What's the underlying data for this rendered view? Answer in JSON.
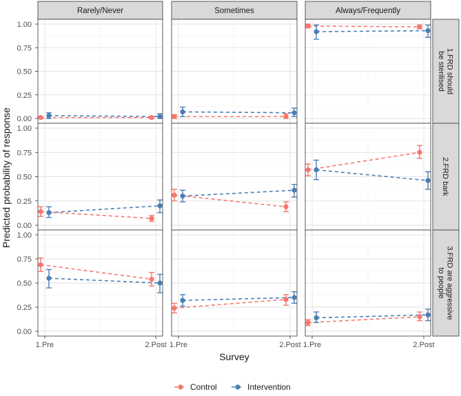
{
  "chart_data": {
    "type": "line",
    "ylabel": "Predicted probability of response",
    "xlabel": "Survey",
    "x_categories": [
      "1.Pre",
      "2.Post"
    ],
    "ylim": [
      0,
      1
    ],
    "y_ticks": [
      "0.00",
      "0.25",
      "0.50",
      "0.75",
      "1.00"
    ],
    "column_facets": [
      "Rarely/Never",
      "Sometimes",
      "Always/Frequently"
    ],
    "row_facets": [
      "1.FRD should be sterilised",
      "2.FRD bark",
      "3.FRD are aggressive to people"
    ],
    "row_facet_lines": [
      [
        "1.FRD should",
        "be sterilised"
      ],
      [
        "2.FRD bark"
      ],
      [
        "3.FRD are aggressive",
        "to people"
      ]
    ],
    "legend_position": "bottom",
    "grid": true,
    "series": [
      {
        "name": "Control",
        "color": "#f8766d"
      },
      {
        "name": "Intervention",
        "color": "#4a7fb5"
      }
    ],
    "panels": [
      [
        {
          "Control": [
            [
              0.01,
              0.0,
              0.02
            ],
            [
              0.01,
              0.0,
              0.02
            ]
          ],
          "Intervention": [
            [
              0.03,
              0.0,
              0.06
            ],
            [
              0.02,
              0.0,
              0.05
            ]
          ]
        },
        {
          "Control": [
            [
              0.02,
              0.0,
              0.04
            ],
            [
              0.02,
              0.0,
              0.05
            ]
          ],
          "Intervention": [
            [
              0.07,
              0.02,
              0.12
            ],
            [
              0.06,
              0.02,
              0.11
            ]
          ]
        },
        {
          "Control": [
            [
              0.98,
              0.96,
              1.0
            ],
            [
              0.97,
              0.95,
              0.99
            ]
          ],
          "Intervention": [
            [
              0.92,
              0.84,
              0.99
            ],
            [
              0.93,
              0.86,
              0.99
            ]
          ]
        }
      ],
      [
        {
          "Control": [
            [
              0.14,
              0.09,
              0.19
            ],
            [
              0.07,
              0.04,
              0.1
            ]
          ],
          "Intervention": [
            [
              0.13,
              0.08,
              0.19
            ],
            [
              0.2,
              0.13,
              0.26
            ]
          ]
        },
        {
          "Control": [
            [
              0.31,
              0.25,
              0.37
            ],
            [
              0.19,
              0.14,
              0.24
            ]
          ],
          "Intervention": [
            [
              0.3,
              0.24,
              0.36
            ],
            [
              0.36,
              0.29,
              0.42
            ]
          ]
        },
        {
          "Control": [
            [
              0.57,
              0.51,
              0.63
            ],
            [
              0.75,
              0.69,
              0.82
            ]
          ],
          "Intervention": [
            [
              0.57,
              0.47,
              0.67
            ],
            [
              0.46,
              0.37,
              0.55
            ]
          ]
        }
      ],
      [
        {
          "Control": [
            [
              0.69,
              0.62,
              0.76
            ],
            [
              0.54,
              0.47,
              0.61
            ]
          ],
          "Intervention": [
            [
              0.55,
              0.45,
              0.64
            ],
            [
              0.5,
              0.4,
              0.59
            ]
          ]
        },
        {
          "Control": [
            [
              0.24,
              0.19,
              0.29
            ],
            [
              0.33,
              0.27,
              0.38
            ]
          ],
          "Intervention": [
            [
              0.32,
              0.26,
              0.38
            ],
            [
              0.35,
              0.29,
              0.41
            ]
          ]
        },
        {
          "Control": [
            [
              0.09,
              0.06,
              0.12
            ],
            [
              0.15,
              0.11,
              0.2
            ]
          ],
          "Intervention": [
            [
              0.14,
              0.09,
              0.2
            ],
            [
              0.17,
              0.11,
              0.23
            ]
          ]
        }
      ]
    ]
  }
}
